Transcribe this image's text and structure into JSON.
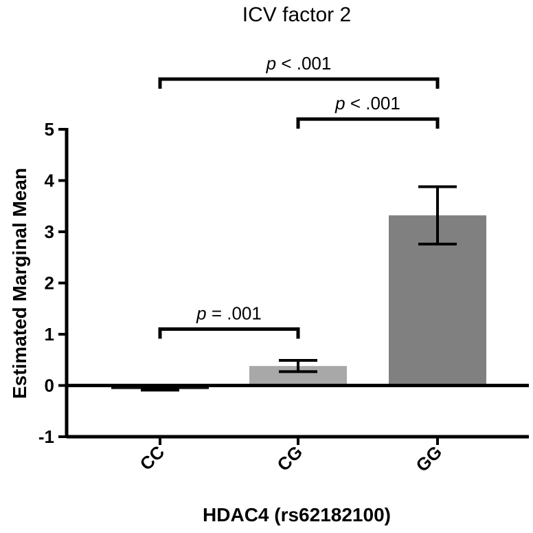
{
  "chart_data": {
    "type": "bar",
    "title": "ICV factor 2",
    "xlabel": "HDAC4 (rs62182100)",
    "ylabel": "Estimated Marginal Mean",
    "ylim": [
      -1,
      5
    ],
    "yticks": [
      "-1",
      "0",
      "1",
      "2",
      "3",
      "4",
      "5"
    ],
    "categories": [
      "CC",
      "CG",
      "GG"
    ],
    "values": [
      -0.07,
      0.38,
      3.32
    ],
    "error": [
      0.02,
      0.11,
      0.56
    ],
    "bar_colors": [
      "#111111",
      "#a8a8a8",
      "#808080"
    ],
    "grid": false,
    "comparisons": [
      {
        "from": "CC",
        "to": "CG",
        "prefix": "p",
        "label": " = .001",
        "level": 1.1
      },
      {
        "from": "CG",
        "to": "GG",
        "prefix": "p",
        "label": " < .001",
        "level": 5.2
      },
      {
        "from": "CC",
        "to": "GG",
        "prefix": "p",
        "label": " < .001",
        "level": 5.98
      }
    ]
  }
}
